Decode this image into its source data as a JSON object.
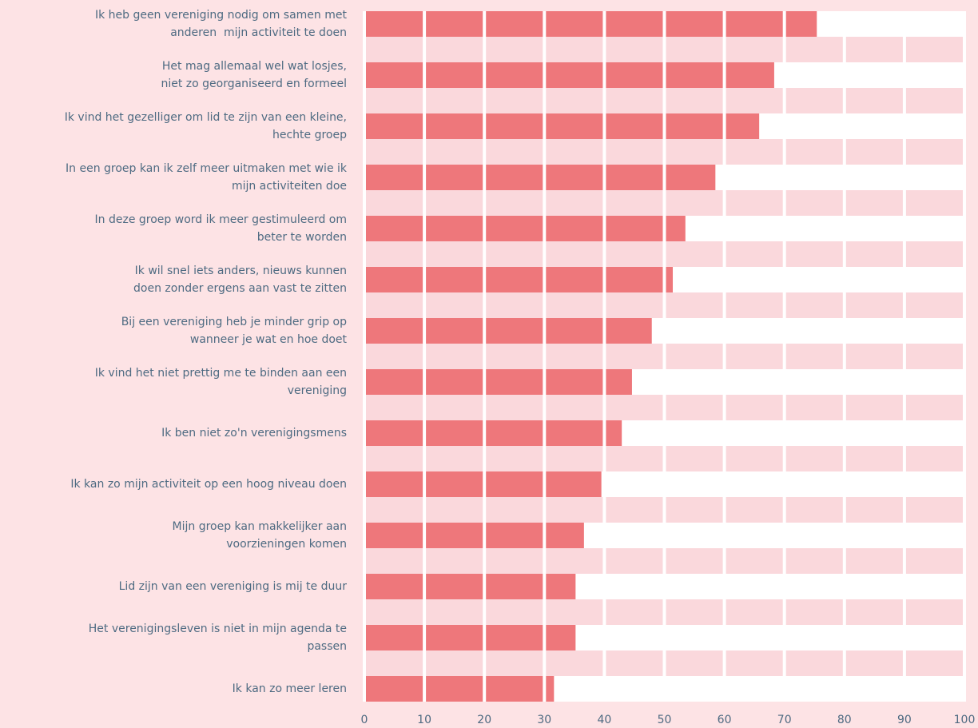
{
  "chart_data": {
    "type": "hbar",
    "categories": [
      "Ik heb geen vereniging nodig om samen met\nanderen  mijn activiteit te doen",
      "Het mag allemaal wel wat losjes,\nniet zo georganiseerd en formeel",
      "Ik vind het gezelliger om lid te zijn van een kleine,\nhechte groep",
      "In een groep kan ik zelf meer uitmaken met wie ik\nmijn activiteiten doe",
      "In deze groep word ik meer gestimuleerd om\nbeter te worden",
      "Ik wil snel iets anders, nieuws kunnen\ndoen zonder ergens aan vast te zitten",
      "Bij een vereniging heb je minder grip op\nwanneer je wat en hoe doet",
      "Ik vind het niet prettig me te binden aan een\nvereniging",
      "Ik ben niet zo'n verenigingsmens",
      "Ik kan zo mijn activiteit op een hoog niveau doen",
      "Mijn groep kan makkelijker aan\nvoorzieningen komen",
      "Lid zijn van een vereniging is mij te duur",
      "Het verenigingsleven is niet in mijn agenda te\npassen",
      "Ik kan zo meer leren"
    ],
    "values": [
      75.4,
      68.3,
      65.8,
      58.5,
      53.5,
      51.4,
      47.9,
      44.6,
      42.9,
      39.5,
      36.6,
      35.2,
      35.2,
      31.6
    ],
    "color": "#ee777b",
    "xlim": [
      0,
      100
    ],
    "xticks": [
      0,
      10,
      20,
      30,
      40,
      50,
      60,
      70,
      80,
      90,
      100
    ],
    "grid": true
  }
}
